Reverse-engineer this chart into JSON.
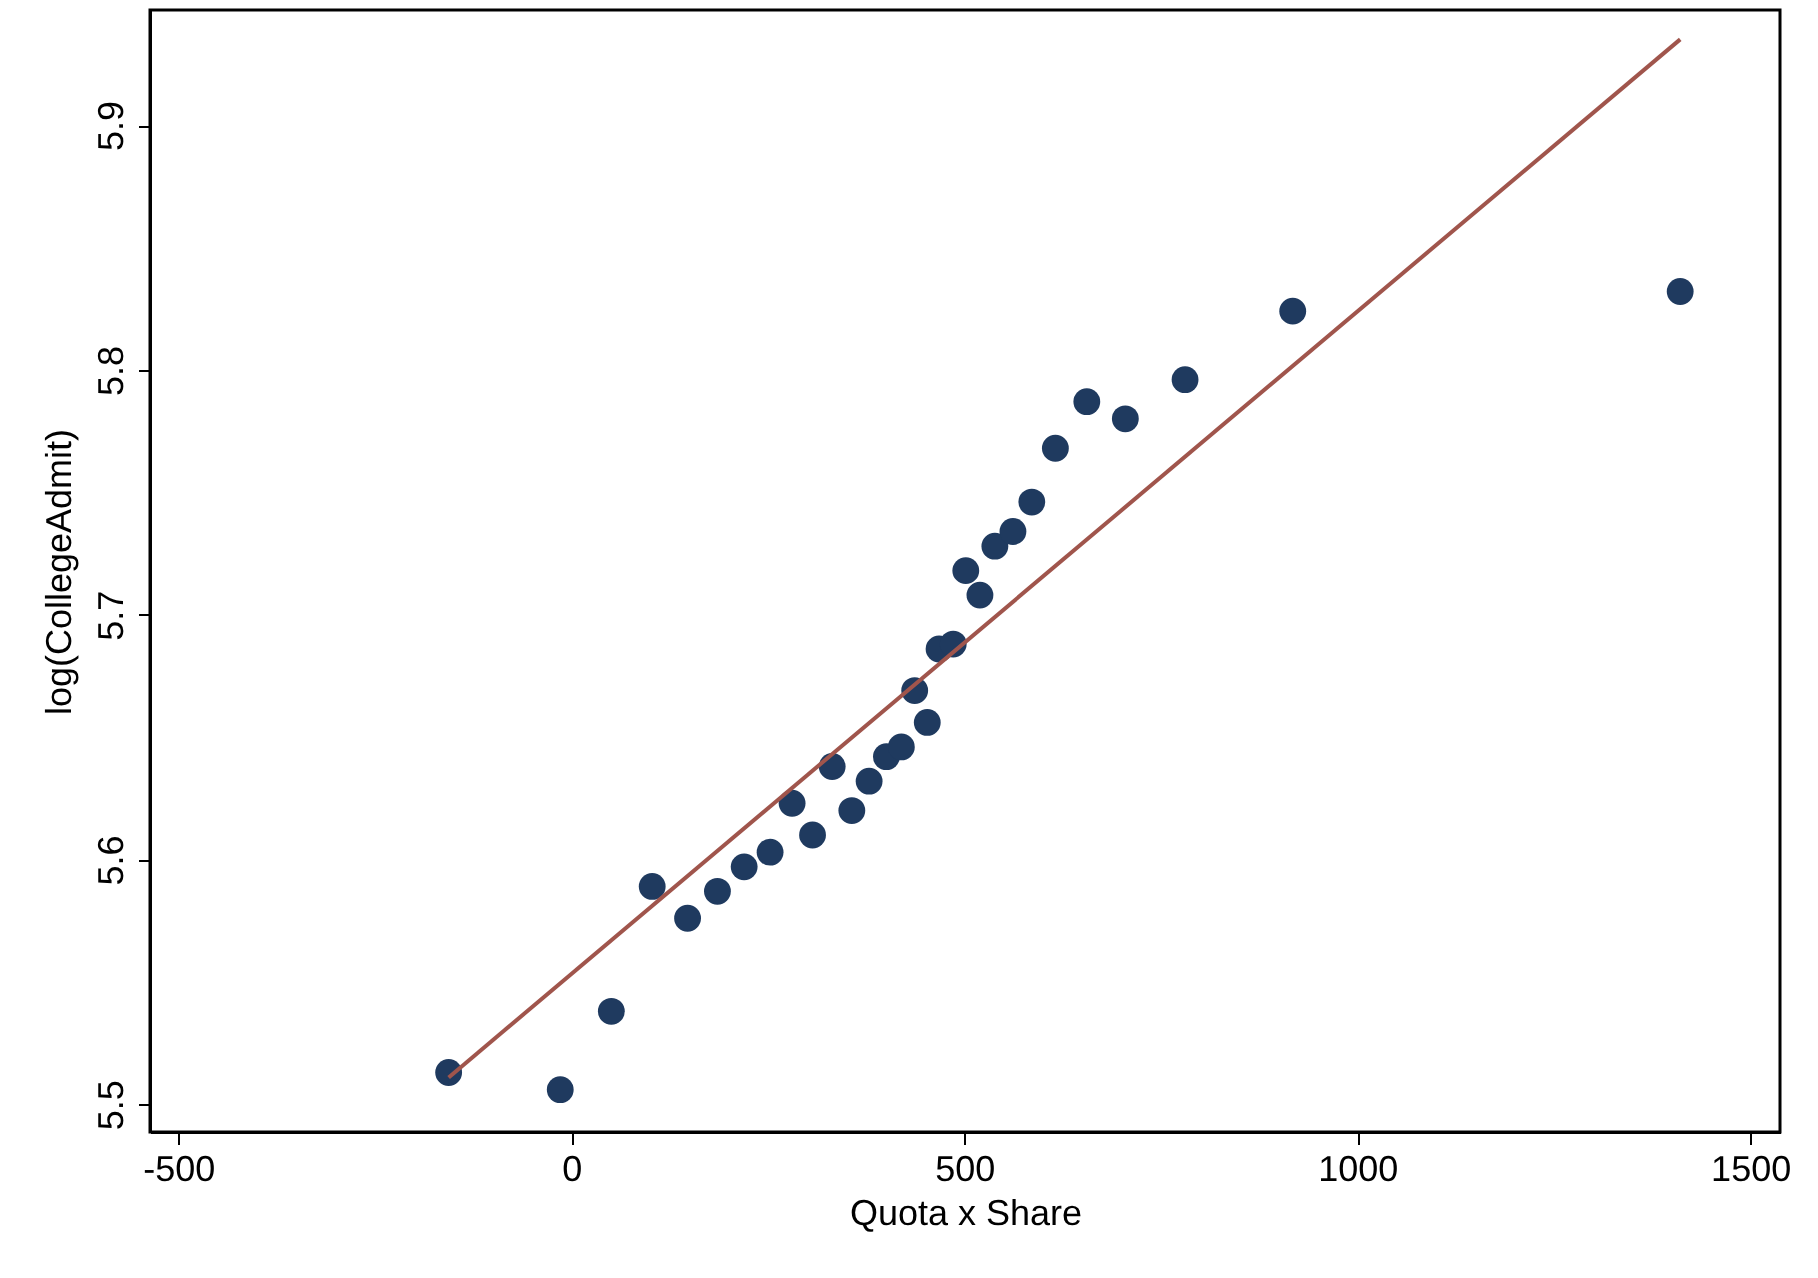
{
  "chart_data": {
    "type": "scatter",
    "xlabel": "Quota x Share",
    "ylabel": "log(CollegeAdmit)",
    "xlim": [
      -536,
      1538
    ],
    "xticks": [
      -500,
      0,
      500,
      1000,
      1500
    ],
    "ylim": [
      5.4887,
      5.947
    ],
    "yticks": [
      5.5,
      5.6,
      5.7,
      5.8,
      5.9
    ],
    "grid": false,
    "series": [
      {
        "marker": "circle",
        "color": "#1f3a5f",
        "x": [
          -156,
          -14,
          51,
          103,
          148,
          186,
          220,
          253,
          281,
          307,
          332,
          357,
          379,
          401,
          420,
          437,
          453,
          468,
          486,
          502,
          520,
          539,
          562,
          586,
          616,
          656,
          705,
          781,
          918,
          1411
        ],
        "values": [
          5.513,
          5.506,
          5.538,
          5.589,
          5.576,
          5.587,
          5.597,
          5.603,
          5.623,
          5.61,
          5.638,
          5.62,
          5.632,
          5.642,
          5.646,
          5.669,
          5.656,
          5.686,
          5.688,
          5.718,
          5.708,
          5.728,
          5.734,
          5.746,
          5.768,
          5.787,
          5.78,
          5.796,
          5.824,
          5.832
        ]
      },
      {
        "type": "line",
        "color": "#a0554c",
        "x": [
          -156,
          1411
        ],
        "values": [
          5.511,
          5.935
        ]
      }
    ]
  }
}
